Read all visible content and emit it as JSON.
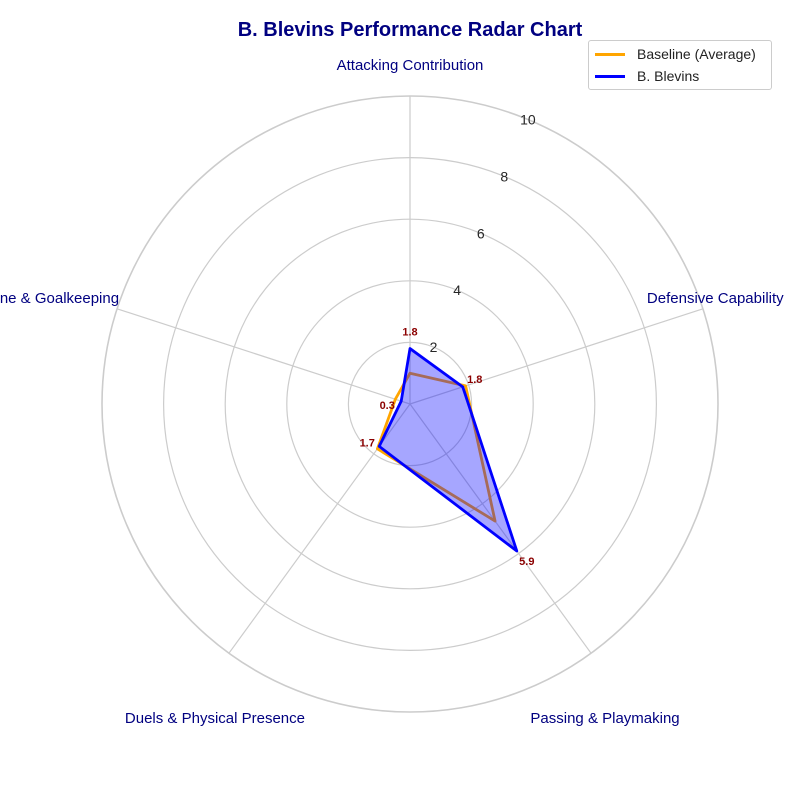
{
  "chart_data": {
    "type": "radar",
    "title": "B. Blevins Performance Radar Chart",
    "axes": [
      "Attacking Contribution",
      "Defensive Capability",
      "Passing & Playmaking",
      "Duels & Physical Presence",
      "Discipline & Goalkeeping"
    ],
    "rlim": [
      0,
      10
    ],
    "rticks": [
      2,
      4,
      6,
      8,
      10
    ],
    "grid": true,
    "legend_position": "top-right",
    "series": [
      {
        "name": "Baseline (Average)",
        "values": [
          1.0,
          1.9,
          4.7,
          1.8,
          0.5
        ],
        "color": "#FFA500",
        "fill": false
      },
      {
        "name": "B. Blevins",
        "values": [
          1.8,
          1.8,
          5.9,
          1.7,
          0.3
        ],
        "color": "#0000FF",
        "fill": true,
        "data_labels": [
          "1.8",
          "1.8",
          "5.9",
          "1.7",
          "0.3"
        ]
      }
    ],
    "colors": {
      "title": "#000080",
      "axis_label": "#000080",
      "data_label": "#8B0000",
      "grid": "#cccccc"
    }
  }
}
